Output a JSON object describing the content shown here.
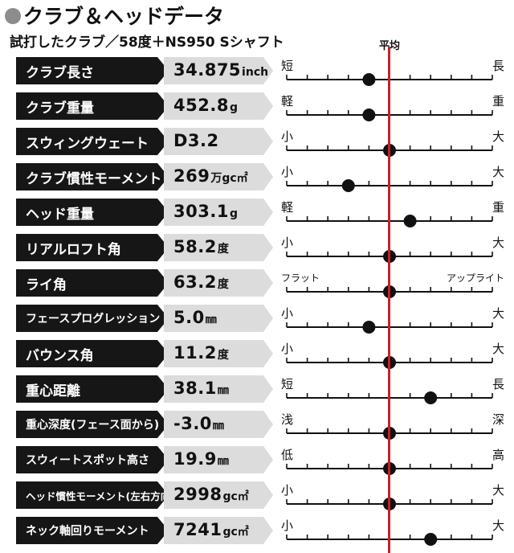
{
  "title": "クラブ＆ヘッドデータ",
  "subtitle": "試打したクラブ／58度＋NS950 Sシャフト",
  "avg_label": "平均",
  "colors": {
    "label_bg": "#161616",
    "value_bg": "#dcdcdc",
    "average_line": "#c8202a",
    "marker": "#111111"
  },
  "chart_data": {
    "type": "scatter",
    "scale_min": -5,
    "scale_max": 5,
    "average_value": 0,
    "rows": [
      {
        "label": "クラブ長さ",
        "value": "34.875",
        "unit": "inch",
        "low": "短",
        "high": "長",
        "position": -1
      },
      {
        "label": "クラブ重量",
        "value": "452.8",
        "unit": "g",
        "low": "軽",
        "high": "重",
        "position": -1
      },
      {
        "label": "スウィングウェート",
        "value": "D3.2",
        "unit": "",
        "low": "小",
        "high": "大",
        "position": 0
      },
      {
        "label": "クラブ慣性モーメント",
        "value": "269",
        "unit": "万gc㎡",
        "low": "小",
        "high": "大",
        "position": -2
      },
      {
        "label": "ヘッド重量",
        "value": "303.1",
        "unit": "g",
        "low": "軽",
        "high": "重",
        "position": 1
      },
      {
        "label": "リアルロフト角",
        "value": "58.2",
        "unit": "度",
        "low": "小",
        "high": "大",
        "position": 0
      },
      {
        "label": "ライ角",
        "value": "63.2",
        "unit": "度",
        "low": "フラット",
        "high": "アップライト",
        "position": 0
      },
      {
        "label": "フェースプログレッション",
        "value": "5.0",
        "unit": "㎜",
        "low": "小",
        "high": "大",
        "position": -1
      },
      {
        "label": "バウンス角",
        "value": "11.2",
        "unit": "度",
        "low": "小",
        "high": "大",
        "position": 0
      },
      {
        "label": "重心距離",
        "value": "38.1",
        "unit": "㎜",
        "low": "短",
        "high": "長",
        "position": 2
      },
      {
        "label": "重心深度(フェース面から)",
        "value": "-3.0",
        "unit": "㎜",
        "low": "浅",
        "high": "深",
        "position": 0
      },
      {
        "label": "スウィートスポット高さ",
        "value": "19.9",
        "unit": "㎜",
        "low": "低",
        "high": "高",
        "position": 0
      },
      {
        "label": "ヘッド慣性モーメント(左右方向)",
        "value": "2998",
        "unit": "gc㎡",
        "low": "小",
        "high": "大",
        "position": 0
      },
      {
        "label": "ネック軸回りモーメント",
        "value": "7241",
        "unit": "gc㎡",
        "low": "小",
        "high": "大",
        "position": 2
      }
    ]
  }
}
